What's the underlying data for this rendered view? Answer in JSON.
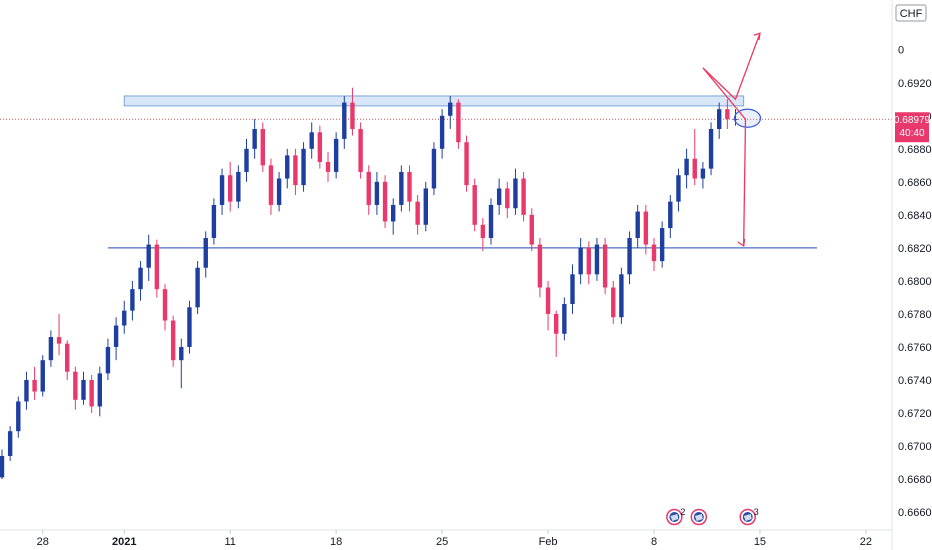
{
  "chart_data": {
    "type": "candlestick",
    "currency": "CHF",
    "y_ticks": [
      "0.66600",
      "0.66800",
      "0.67000",
      "0.67200",
      "0.67400",
      "0.67600",
      "0.67800",
      "0.68000",
      "0.68200",
      "0.68400",
      "0.68600",
      "0.68800",
      "0.69000",
      "0.69200"
    ],
    "y_top_partial": "0",
    "ylim": [
      0.6654,
      0.6958
    ],
    "x_ticks": [
      {
        "label": "28",
        "idx": 5
      },
      {
        "label": "2021",
        "idx": 15
      },
      {
        "label": "11",
        "idx": 28
      },
      {
        "label": "18",
        "idx": 41
      },
      {
        "label": "25",
        "idx": 54
      },
      {
        "label": "Feb",
        "idx": 67
      },
      {
        "label": "8",
        "idx": 80
      },
      {
        "label": "15",
        "idx": 93
      },
      {
        "label": "22",
        "idx": 106
      }
    ],
    "current_price": "0.68979",
    "countdown": "40:40",
    "current_value": 0.68979,
    "support_level": 0.682,
    "resistance_zone": [
      0.6906,
      0.6912
    ],
    "events": [
      {
        "label": "2",
        "idx": 82.5
      },
      {
        "label": "",
        "idx": 85.5
      },
      {
        "label": "3",
        "idx": 91.5
      }
    ],
    "colors": {
      "up": "#1e3fa0",
      "down": "#e8386c",
      "support": "#4a6fc4",
      "zone_fill": "#d8e6f7",
      "zone_stroke": "#7aa6d8",
      "projection": "#f0375d",
      "price_line": "#d9534f"
    },
    "ohlc": [
      [
        0.6681,
        0.6698,
        0.668,
        0.6694
      ],
      [
        0.6694,
        0.6712,
        0.6691,
        0.6709
      ],
      [
        0.6709,
        0.673,
        0.6705,
        0.6727
      ],
      [
        0.6727,
        0.6745,
        0.6722,
        0.674
      ],
      [
        0.674,
        0.6748,
        0.6728,
        0.6733
      ],
      [
        0.6733,
        0.6755,
        0.673,
        0.6752
      ],
      [
        0.6752,
        0.677,
        0.6748,
        0.6766
      ],
      [
        0.6766,
        0.678,
        0.6755,
        0.6762
      ],
      [
        0.6762,
        0.6764,
        0.674,
        0.6745
      ],
      [
        0.6745,
        0.6748,
        0.6722,
        0.6728
      ],
      [
        0.6728,
        0.6745,
        0.6725,
        0.674
      ],
      [
        0.674,
        0.6743,
        0.672,
        0.6724
      ],
      [
        0.6724,
        0.6748,
        0.6718,
        0.6744
      ],
      [
        0.6744,
        0.6765,
        0.674,
        0.676
      ],
      [
        0.676,
        0.6778,
        0.6752,
        0.6773
      ],
      [
        0.6773,
        0.6788,
        0.6768,
        0.6782
      ],
      [
        0.6782,
        0.68,
        0.6776,
        0.6795
      ],
      [
        0.6795,
        0.6812,
        0.6788,
        0.6808
      ],
      [
        0.6808,
        0.6828,
        0.68,
        0.6822
      ],
      [
        0.6822,
        0.6825,
        0.679,
        0.6795
      ],
      [
        0.6795,
        0.6798,
        0.677,
        0.6776
      ],
      [
        0.6776,
        0.6779,
        0.6748,
        0.6752
      ],
      [
        0.6752,
        0.6765,
        0.6735,
        0.676
      ],
      [
        0.676,
        0.6788,
        0.6756,
        0.6784
      ],
      [
        0.6784,
        0.6812,
        0.678,
        0.6808
      ],
      [
        0.6808,
        0.683,
        0.6802,
        0.6826
      ],
      [
        0.6826,
        0.685,
        0.6822,
        0.6846
      ],
      [
        0.6846,
        0.6868,
        0.684,
        0.6864
      ],
      [
        0.6864,
        0.6872,
        0.6842,
        0.6848
      ],
      [
        0.6848,
        0.687,
        0.6844,
        0.6866
      ],
      [
        0.6866,
        0.6886,
        0.686,
        0.688
      ],
      [
        0.688,
        0.6898,
        0.6874,
        0.6892
      ],
      [
        0.6892,
        0.6896,
        0.6866,
        0.687
      ],
      [
        0.687,
        0.6874,
        0.684,
        0.6846
      ],
      [
        0.6846,
        0.6866,
        0.6842,
        0.6862
      ],
      [
        0.6862,
        0.688,
        0.6856,
        0.6876
      ],
      [
        0.6876,
        0.688,
        0.6852,
        0.6858
      ],
      [
        0.6858,
        0.6884,
        0.6854,
        0.688
      ],
      [
        0.688,
        0.6896,
        0.6874,
        0.689
      ],
      [
        0.689,
        0.6894,
        0.6868,
        0.6872
      ],
      [
        0.6872,
        0.6878,
        0.686,
        0.6866
      ],
      [
        0.6866,
        0.689,
        0.6862,
        0.6886
      ],
      [
        0.6886,
        0.6912,
        0.688,
        0.6908
      ],
      [
        0.6908,
        0.6917,
        0.6888,
        0.6892
      ],
      [
        0.6892,
        0.6896,
        0.6862,
        0.6866
      ],
      [
        0.6866,
        0.687,
        0.684,
        0.6846
      ],
      [
        0.6846,
        0.6866,
        0.684,
        0.686
      ],
      [
        0.686,
        0.6864,
        0.6832,
        0.6836
      ],
      [
        0.6836,
        0.685,
        0.6828,
        0.6846
      ],
      [
        0.6846,
        0.687,
        0.6842,
        0.6866
      ],
      [
        0.6866,
        0.687,
        0.6842,
        0.6848
      ],
      [
        0.6848,
        0.6852,
        0.6828,
        0.6834
      ],
      [
        0.6834,
        0.686,
        0.683,
        0.6856
      ],
      [
        0.6856,
        0.6884,
        0.6852,
        0.688
      ],
      [
        0.688,
        0.6904,
        0.6874,
        0.69
      ],
      [
        0.69,
        0.6912,
        0.6892,
        0.6908
      ],
      [
        0.6908,
        0.691,
        0.688,
        0.6884
      ],
      [
        0.6884,
        0.6888,
        0.6854,
        0.6858
      ],
      [
        0.6858,
        0.6862,
        0.683,
        0.6834
      ],
      [
        0.6834,
        0.6838,
        0.6818,
        0.6826
      ],
      [
        0.6826,
        0.685,
        0.6822,
        0.6846
      ],
      [
        0.6846,
        0.6862,
        0.684,
        0.6856
      ],
      [
        0.6856,
        0.686,
        0.6838,
        0.6844
      ],
      [
        0.6844,
        0.6868,
        0.684,
        0.6862
      ],
      [
        0.6862,
        0.6866,
        0.6836,
        0.684
      ],
      [
        0.684,
        0.6844,
        0.6818,
        0.6822
      ],
      [
        0.6822,
        0.6826,
        0.679,
        0.6796
      ],
      [
        0.6796,
        0.68,
        0.677,
        0.678
      ],
      [
        0.678,
        0.6782,
        0.6754,
        0.6768
      ],
      [
        0.6768,
        0.679,
        0.6764,
        0.6786
      ],
      [
        0.6786,
        0.681,
        0.678,
        0.6804
      ],
      [
        0.6804,
        0.6826,
        0.6798,
        0.682
      ],
      [
        0.682,
        0.6824,
        0.6798,
        0.6804
      ],
      [
        0.6804,
        0.6826,
        0.68,
        0.6822
      ],
      [
        0.6822,
        0.6826,
        0.6792,
        0.6796
      ],
      [
        0.6796,
        0.68,
        0.6774,
        0.6778
      ],
      [
        0.6778,
        0.6808,
        0.6774,
        0.6804
      ],
      [
        0.6804,
        0.683,
        0.6798,
        0.6826
      ],
      [
        0.6826,
        0.6846,
        0.682,
        0.6842
      ],
      [
        0.6842,
        0.6846,
        0.6816,
        0.6822
      ],
      [
        0.6822,
        0.6826,
        0.6806,
        0.6812
      ],
      [
        0.6812,
        0.6836,
        0.6808,
        0.6832
      ],
      [
        0.6832,
        0.6852,
        0.6826,
        0.6848
      ],
      [
        0.6848,
        0.6868,
        0.6842,
        0.6864
      ],
      [
        0.6864,
        0.688,
        0.6856,
        0.6874
      ],
      [
        0.6874,
        0.6892,
        0.6858,
        0.6862
      ],
      [
        0.6862,
        0.6872,
        0.6856,
        0.6868
      ],
      [
        0.6868,
        0.6896,
        0.6864,
        0.6892
      ],
      [
        0.6892,
        0.6908,
        0.6886,
        0.6904
      ],
      [
        0.6904,
        0.691,
        0.6892,
        0.6898
      ],
      [
        0.6898,
        0.6904,
        0.6894,
        0.6898
      ]
    ]
  }
}
